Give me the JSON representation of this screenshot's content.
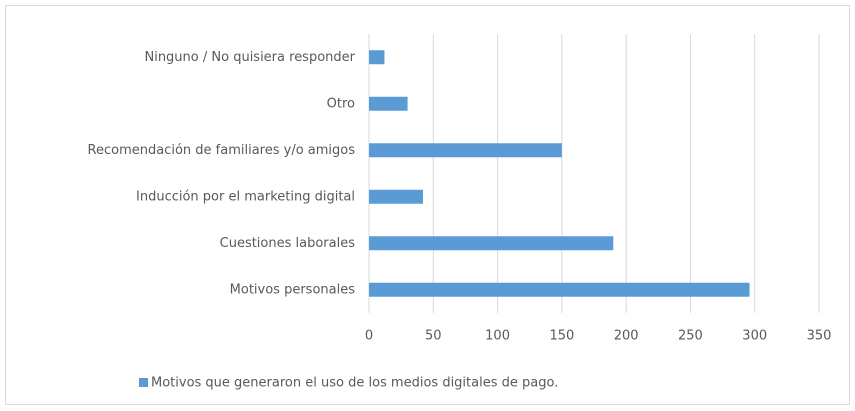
{
  "chart_data": {
    "type": "barh",
    "categories": [
      "Motivos personales",
      "Cuestiones laborales",
      "Inducción por el marketing digital",
      "Recomendación de familiares y/o amigos",
      "Otro",
      "Ninguno / No quisiera responder"
    ],
    "series": [
      {
        "name": "Motivos que generaron el uso de los medios digitales de pago.",
        "color": "#5b9bd5",
        "values": [
          296,
          190,
          42,
          150,
          30,
          12
        ]
      }
    ],
    "xlim": [
      0,
      350
    ],
    "xticks": [
      0,
      50,
      100,
      150,
      200,
      250,
      300,
      350
    ],
    "grid": true,
    "legend": "bottom"
  }
}
